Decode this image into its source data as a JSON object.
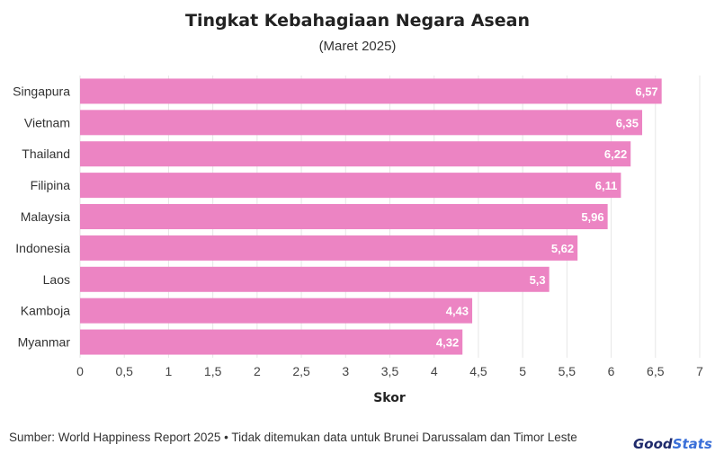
{
  "chart_data": {
    "type": "bar",
    "orientation": "horizontal",
    "title": "Tingkat Kebahagiaan Negara Asean",
    "subtitle": "(Maret 2025)",
    "xlabel": "Skor",
    "ylabel": "",
    "categories": [
      "Singapura",
      "Vietnam",
      "Thailand",
      "Filipina",
      "Malaysia",
      "Indonesia",
      "Laos",
      "Kamboja",
      "Myanmar"
    ],
    "values": [
      6.57,
      6.35,
      6.22,
      6.11,
      5.96,
      5.62,
      5.3,
      4.43,
      4.32
    ],
    "value_labels": [
      "6,57",
      "6,35",
      "6,22",
      "6,11",
      "5,96",
      "5,62",
      "5,3",
      "4,43",
      "4,32"
    ],
    "xlim": [
      0,
      7
    ],
    "xticks": [
      "0",
      "0,5",
      "1",
      "1,5",
      "2",
      "2,5",
      "3",
      "3,5",
      "4",
      "4,5",
      "5",
      "5,5",
      "6",
      "6,5",
      "7"
    ],
    "grid": "vertical",
    "legend": "none",
    "bar_color": "#ec84c3"
  },
  "footer": {
    "source": "Sumber: World Happiness Report 2025 • Tidak ditemukan data untuk Brunei Darussalam dan Timor Leste",
    "brand_part1": "Good",
    "brand_part2": "Stats"
  }
}
